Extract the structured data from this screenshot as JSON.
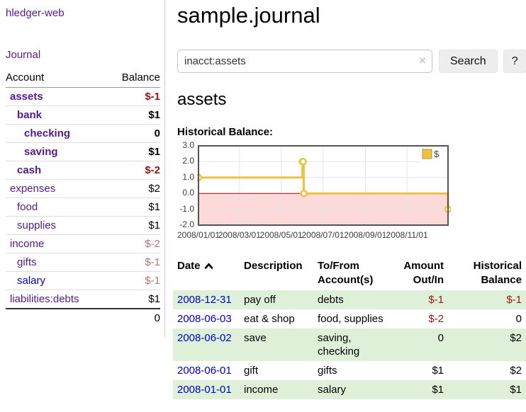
{
  "app_title": "hledger-web",
  "colors": {
    "link_purple": "#551a8b",
    "link_blue": "#0000cc",
    "negative_red": "#971717",
    "negative_muted_rose": "#bf7272",
    "row_stripe_green": "#dff0d8",
    "series_yellow": "#edc240",
    "zero_line_red": "#a40000",
    "negative_region_pink": "#fcdada",
    "chart_border_gray": "#545454"
  },
  "sidebar": {
    "journal_link": "Journal",
    "headers": {
      "account": "Account",
      "balance": "Balance"
    },
    "accounts": [
      {
        "name": "assets",
        "level": 1,
        "bold": true,
        "name_color": "purple",
        "balance": "$-1",
        "balance_style": "negative"
      },
      {
        "name": "bank",
        "level": 2,
        "bold": true,
        "name_color": "purple",
        "balance": "$1",
        "balance_style": "normal"
      },
      {
        "name": "checking",
        "level": 3,
        "bold": true,
        "name_color": "purple",
        "balance": "0",
        "balance_style": "normal"
      },
      {
        "name": "saving",
        "level": 3,
        "bold": true,
        "name_color": "purple",
        "balance": "$1",
        "balance_style": "normal"
      },
      {
        "name": "cash",
        "level": 2,
        "bold": true,
        "name_color": "purple",
        "balance": "$-2",
        "balance_style": "negative"
      },
      {
        "name": "expenses",
        "level": 1,
        "bold": false,
        "name_color": "purple",
        "balance": "$2",
        "balance_style": "normal"
      },
      {
        "name": "food",
        "level": 2,
        "bold": false,
        "name_color": "purple",
        "balance": "$1",
        "balance_style": "normal"
      },
      {
        "name": "supplies",
        "level": 2,
        "bold": false,
        "name_color": "purple",
        "balance": "$1",
        "balance_style": "normal"
      },
      {
        "name": "income",
        "level": 1,
        "bold": false,
        "name_color": "purple",
        "balance": "$-2",
        "balance_style": "negative-muted"
      },
      {
        "name": "gifts",
        "level": 2,
        "bold": false,
        "name_color": "purple",
        "balance": "$-1",
        "balance_style": "negative-muted"
      },
      {
        "name": "salary",
        "level": 2,
        "bold": false,
        "name_color": "blue",
        "balance": "$-1",
        "balance_style": "negative-muted"
      },
      {
        "name": "liabilities:debts",
        "level": 1,
        "bold": false,
        "name_color": "purple",
        "balance": "$1",
        "balance_style": "normal"
      }
    ],
    "total": "0"
  },
  "main": {
    "title": "sample.journal",
    "search": {
      "value": "inacct:assets",
      "clear_label": "×",
      "search_button": "Search",
      "help_button": "?"
    },
    "account_heading": "assets",
    "section_label": "Historical Balance:"
  },
  "chart_data": {
    "type": "line",
    "step": true,
    "title": "Historical Balance",
    "series": [
      {
        "name": "$",
        "color": "#edc240",
        "points": [
          [
            "2008-01-01",
            1
          ],
          [
            "2008-06-01",
            2
          ],
          [
            "2008-06-02",
            2
          ],
          [
            "2008-06-03",
            0
          ],
          [
            "2008-12-31",
            -1
          ]
        ]
      }
    ],
    "x_range": [
      "2008-01-01",
      "2008-12-31"
    ],
    "x_ticks": [
      {
        "date": "2008-01-01",
        "label": "2008/01/01"
      },
      {
        "date": "2008-03-01",
        "label": "2008/03/01"
      },
      {
        "date": "2008-05-01",
        "label": "2008/05/01"
      },
      {
        "date": "2008-07-01",
        "label": "2008/07/01"
      },
      {
        "date": "2008-09-01",
        "label": "2008/09/01"
      },
      {
        "date": "2008-11-01",
        "label": "2008/11/01"
      }
    ],
    "y_ticks": [
      {
        "value": 3,
        "label": "3.0"
      },
      {
        "value": 2,
        "label": "2.0"
      },
      {
        "value": 1,
        "label": "1.0"
      },
      {
        "value": 0,
        "label": "0.0"
      },
      {
        "value": -1,
        "label": "-1.0"
      },
      {
        "value": -2,
        "label": "-2.0"
      }
    ],
    "ylim": [
      -2,
      3
    ],
    "grid": true,
    "legend_position": "top-right",
    "legend_label": "$",
    "negative_region_shaded": true
  },
  "register": {
    "headers": {
      "date": "Date",
      "description": "Description",
      "accounts": "To/From Account(s)",
      "amount": "Amount Out/In",
      "balance": "Historical Balance"
    },
    "rows": [
      {
        "date": "2008-12-31",
        "description": "pay off",
        "accounts": [
          "debts"
        ],
        "amount": "$-1",
        "amount_negative": true,
        "balance": "$-1",
        "balance_negative": true
      },
      {
        "date": "2008-06-03",
        "description": "eat & shop",
        "accounts": [
          "food, supplies"
        ],
        "amount": "$-2",
        "amount_negative": true,
        "balance": "0",
        "balance_negative": false
      },
      {
        "date": "2008-06-02",
        "description": "save",
        "accounts": [
          "saving,",
          "checking"
        ],
        "amount": "0",
        "amount_negative": false,
        "balance": "$2",
        "balance_negative": false
      },
      {
        "date": "2008-06-01",
        "description": "gift",
        "accounts": [
          "gifts"
        ],
        "amount": "$1",
        "amount_negative": false,
        "balance": "$2",
        "balance_negative": false
      },
      {
        "date": "2008-01-01",
        "description": "income",
        "accounts": [
          "salary"
        ],
        "amount": "$1",
        "amount_negative": false,
        "balance": "$1",
        "balance_negative": false
      }
    ]
  }
}
